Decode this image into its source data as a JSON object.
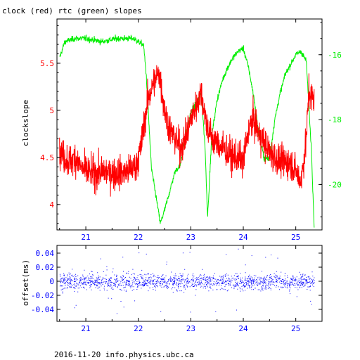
{
  "title": "clock (red) rtc (green) slopes",
  "footer": "2016-11-20 info.physics.ubc.ca",
  "colors": {
    "red": "#ff0000",
    "green": "#00ee00",
    "blue": "#0000ff",
    "axis": "#000000"
  },
  "chart_data": [
    {
      "type": "line",
      "ylabel": "clockslope",
      "xlim": [
        20.45,
        25.5
      ],
      "ylim": [
        3.73,
        5.97
      ],
      "y2lim": [
        -21.4,
        -14.9
      ],
      "x_ticks": [
        "21",
        "22",
        "23",
        "24",
        "25"
      ],
      "x_tick_values": [
        21,
        22,
        23,
        24,
        25
      ],
      "y_ticks": [
        "4",
        "4.5",
        "5",
        "5.5"
      ],
      "y_tick_values": [
        4,
        4.5,
        5,
        5.5
      ],
      "y2_ticks": [
        "-16",
        "-18",
        "-20"
      ],
      "y2_tick_values": [
        -16,
        -18,
        -20
      ],
      "series": [
        {
          "axis": "left",
          "color": "#ff0000",
          "x": [
            20.5,
            20.6,
            20.7,
            20.8,
            20.9,
            21.0,
            21.2,
            21.4,
            21.6,
            21.8,
            21.95,
            22.05,
            22.12,
            22.2,
            22.3,
            22.4,
            22.5,
            22.6,
            22.7,
            22.8,
            22.9,
            23.0,
            23.1,
            23.2,
            23.3,
            23.4,
            23.5,
            23.6,
            23.7,
            23.8,
            23.9,
            24.0,
            24.1,
            24.2,
            24.3,
            24.4,
            24.5,
            24.6,
            24.7,
            24.8,
            24.9,
            25.0,
            25.1,
            25.2,
            25.25,
            25.35
          ],
          "values": [
            4.55,
            4.5,
            4.45,
            4.5,
            4.4,
            4.35,
            4.33,
            4.35,
            4.33,
            4.35,
            4.4,
            4.6,
            4.9,
            5.15,
            5.3,
            5.4,
            5.0,
            4.8,
            4.7,
            4.6,
            4.7,
            4.9,
            5.05,
            5.2,
            4.85,
            4.7,
            4.65,
            4.6,
            4.55,
            4.5,
            4.5,
            4.45,
            4.8,
            4.9,
            4.75,
            4.65,
            4.55,
            4.5,
            4.45,
            4.45,
            4.45,
            4.35,
            4.25,
            4.7,
            5.2,
            5.1
          ],
          "noise_amplitude": 0.22
        },
        {
          "axis": "right",
          "color": "#00ee00",
          "x": [
            20.5,
            20.6,
            20.8,
            21.0,
            21.3,
            21.6,
            21.9,
            22.1,
            22.15,
            22.25,
            22.35,
            22.42,
            22.5,
            22.6,
            22.7,
            22.8,
            22.9,
            23.0,
            23.1,
            23.2,
            23.27,
            23.32,
            23.4,
            23.5,
            23.6,
            23.7,
            23.8,
            23.9,
            24.0,
            24.1,
            24.2,
            24.3,
            24.4,
            24.5,
            24.6,
            24.7,
            24.8,
            24.9,
            25.0,
            25.1,
            25.2,
            25.3,
            25.35
          ],
          "values": [
            -16.1,
            -15.6,
            -15.5,
            -15.5,
            -15.6,
            -15.5,
            -15.5,
            -15.7,
            -16.6,
            -19.5,
            -20.5,
            -21.2,
            -20.8,
            -20.2,
            -19.6,
            -19.4,
            -18.5,
            -17.8,
            -17.5,
            -17.2,
            -18.8,
            -21.0,
            -18.5,
            -17.4,
            -16.8,
            -16.4,
            -16.1,
            -15.9,
            -15.8,
            -16.4,
            -17.3,
            -18.5,
            -19.2,
            -19.2,
            -18.0,
            -17.2,
            -16.6,
            -16.3,
            -16.0,
            -15.9,
            -16.2,
            -19.0,
            -21.3
          ],
          "noise_amplitude": 0.12
        }
      ]
    },
    {
      "type": "scatter",
      "ylabel": "offset(ms)",
      "xlim": [
        20.45,
        25.5
      ],
      "ylim": [
        -0.057,
        0.051
      ],
      "x_ticks": [
        "21",
        "22",
        "23",
        "24",
        "25"
      ],
      "x_tick_values": [
        21,
        22,
        23,
        24,
        25
      ],
      "y_ticks": [
        "0.04",
        "0.02",
        "0",
        "-0.02",
        "-0.04"
      ],
      "y_tick_values": [
        0.04,
        0.02,
        0,
        -0.02,
        -0.04
      ],
      "series": [
        {
          "color": "#0000ff",
          "x_range": [
            20.5,
            25.35
          ],
          "center": 0.0,
          "spread_sd": 0.008,
          "max_abs": 0.047,
          "point_count": 7000
        }
      ]
    }
  ]
}
